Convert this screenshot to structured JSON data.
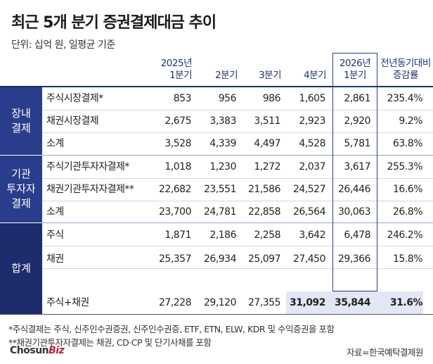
{
  "title": "최근 5개 분기 증권결제대금 추이",
  "unit": "단위: 십억 원, 일평균 기준",
  "headers": {
    "c1": [
      "2025년",
      "1분기"
    ],
    "c2": "2분기",
    "c3": "3분기",
    "c4": "4분기",
    "c5": [
      "2026년",
      "1분기"
    ],
    "c6": [
      "전년동기대비",
      "증감률"
    ]
  },
  "groups": [
    {
      "name": "장내 결제",
      "lines": [
        "장내",
        "결제"
      ],
      "color": "#2a3d8c"
    },
    {
      "name": "기관 투자자 결제",
      "lines": [
        "기관",
        "투자자",
        "결제"
      ],
      "color": "#2a3d8c"
    },
    {
      "name": "합계",
      "lines": [
        "합계"
      ],
      "color": "#1c2c6c"
    }
  ],
  "chart_data": {
    "type": "table",
    "title": "최근 5개 분기 증권결제대금 추이",
    "unit": "단위: 십억 원, 일평균 기준",
    "columns": [
      "2025년 1분기",
      "2분기",
      "3분기",
      "4분기",
      "2026년 1분기",
      "전년동기대비 증감률"
    ],
    "rows": [
      {
        "group": "장내 결제",
        "label": "주식시장결제*",
        "values": [
          "853",
          "956",
          "986",
          "1,605",
          "2,861",
          "235.4%"
        ]
      },
      {
        "group": "장내 결제",
        "label": "채권시장결제",
        "values": [
          "2,675",
          "3,383",
          "3,511",
          "2,923",
          "2,920",
          "9.2%"
        ]
      },
      {
        "group": "장내 결제",
        "label": "소계",
        "values": [
          "3,528",
          "4,339",
          "4,497",
          "4,528",
          "5,781",
          "63.8%"
        ]
      },
      {
        "group": "기관 투자자 결제",
        "label": "주식기관투자자결제*",
        "values": [
          "1,018",
          "1,230",
          "1,272",
          "2,037",
          "3,617",
          "255.3%"
        ]
      },
      {
        "group": "기관 투자자 결제",
        "label": "채권기관투자자결제**",
        "values": [
          "22,682",
          "23,551",
          "21,586",
          "24,527",
          "26,446",
          "16.6%"
        ]
      },
      {
        "group": "기관 투자자 결제",
        "label": "소계",
        "values": [
          "23,700",
          "24,781",
          "22,858",
          "26,564",
          "30,063",
          "26.8%"
        ]
      },
      {
        "group": "합계",
        "label": "주식",
        "values": [
          "1,871",
          "2,186",
          "2,258",
          "3,642",
          "6,478",
          "246.2%"
        ]
      },
      {
        "group": "합계",
        "label": "채권",
        "values": [
          "25,357",
          "26,934",
          "25,097",
          "27,450",
          "29,366",
          "15.8%"
        ]
      },
      {
        "group": "합계",
        "label": "주식+채권",
        "values": [
          "27,228",
          "29,120",
          "27,355",
          "31,092",
          "35,844",
          "31.6%"
        ]
      }
    ]
  },
  "notes": [
    "*주식결제는 주식, 신주인수권증권, 신주인수권증, ETF, ETN, ELW, KDR 및 수익증권을 포함",
    "**채권기관투자자결제는 채권, CD·CP 및 단기사채를 포함"
  ],
  "logo": {
    "text1": "Chosun",
    "text2": "Biz"
  },
  "source": "자료=한국예탁결제원",
  "colors": {
    "navy": "#1c2c6c",
    "accent_box": "#2a3d8c",
    "highlight": "#e2e6f5",
    "brand_red": "#c0203a"
  }
}
